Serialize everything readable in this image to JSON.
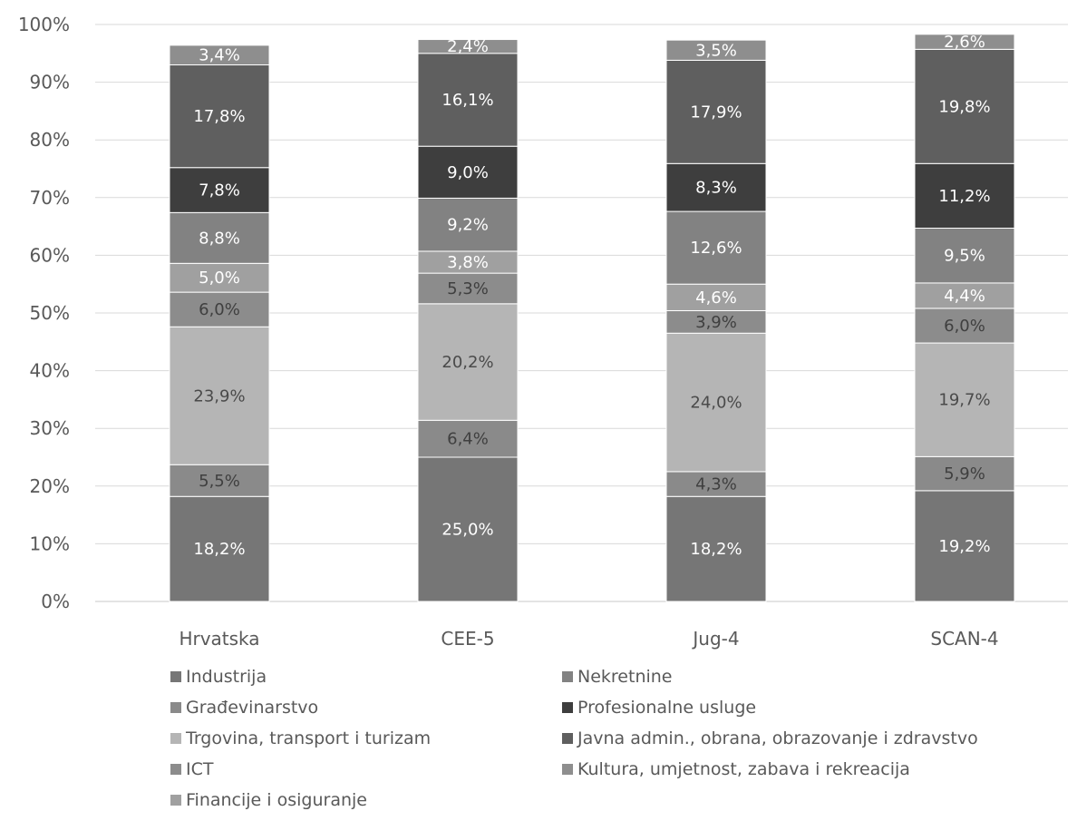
{
  "chart_data": {
    "type": "bar",
    "stacked": true,
    "categories": [
      "Hrvatska",
      "CEE-5",
      "Jug-4",
      "SCAN-4"
    ],
    "ylim": [
      0,
      100
    ],
    "y_ticks": [
      "0%",
      "10%",
      "20%",
      "30%",
      "40%",
      "50%",
      "60%",
      "70%",
      "80%",
      "90%",
      "100%"
    ],
    "grid": true,
    "legend_position": "bottom",
    "series": [
      {
        "name": "Industrija",
        "color": "#767676",
        "values": [
          18.2,
          25.0,
          18.2,
          19.2
        ],
        "labels": [
          "18,2%",
          "25,0%",
          "18,2%",
          "19,2%"
        ],
        "label_color": "#ffffff"
      },
      {
        "name": "Građevinarstvo",
        "color": "#8a8a8a",
        "values": [
          5.5,
          6.4,
          4.3,
          5.9
        ],
        "labels": [
          "5,5%",
          "6,4%",
          "4,3%",
          "5,9%"
        ],
        "label_color": "#3f3f3f"
      },
      {
        "name": "Trgovina, transport i turizam",
        "color": "#b5b5b5",
        "values": [
          23.9,
          20.2,
          24.0,
          19.7
        ],
        "labels": [
          "23,9%",
          "20,2%",
          "24,0%",
          "19,7%"
        ],
        "label_color": "#4a4a4a"
      },
      {
        "name": "ICT",
        "color": "#8c8c8c",
        "values": [
          6.0,
          5.3,
          3.9,
          6.0
        ],
        "labels": [
          "6,0%",
          "5,3%",
          "3,9%",
          "6,0%"
        ],
        "label_color": "#3f3f3f"
      },
      {
        "name": "Financije i osiguranje",
        "color": "#a0a0a0",
        "values": [
          5.0,
          3.8,
          4.6,
          4.4
        ],
        "labels": [
          "5,0%",
          "3,8%",
          "4,6%",
          "4,4%"
        ],
        "label_color": "#ffffff"
      },
      {
        "name": "Nekretnine",
        "color": "#828282",
        "values": [
          8.8,
          9.2,
          12.6,
          9.5
        ],
        "labels": [
          "8,8%",
          "9,2%",
          "12,6%",
          "9,5%"
        ],
        "label_color": "#ffffff"
      },
      {
        "name": "Profesionalne usluge",
        "color": "#3e3e3e",
        "values": [
          7.8,
          9.0,
          8.3,
          11.2
        ],
        "labels": [
          "7,8%",
          "9,0%",
          "8,3%",
          "11,2%"
        ],
        "label_color": "#ffffff"
      },
      {
        "name": "Javna admin., obrana, obrazovanje i zdravstvo",
        "color": "#5f5f5f",
        "values": [
          17.8,
          16.1,
          17.9,
          19.8
        ],
        "labels": [
          "17,8%",
          "16,1%",
          "17,9%",
          "19,8%"
        ],
        "label_color": "#ffffff"
      },
      {
        "name": "Kultura, umjetnost, zabava i rekreacija",
        "color": "#8e8e8e",
        "values": [
          3.4,
          2.4,
          3.5,
          2.6
        ],
        "labels": [
          "3,4%",
          "2,4%",
          "3,5%",
          "2,6%"
        ],
        "label_color": "#ffffff"
      }
    ]
  }
}
